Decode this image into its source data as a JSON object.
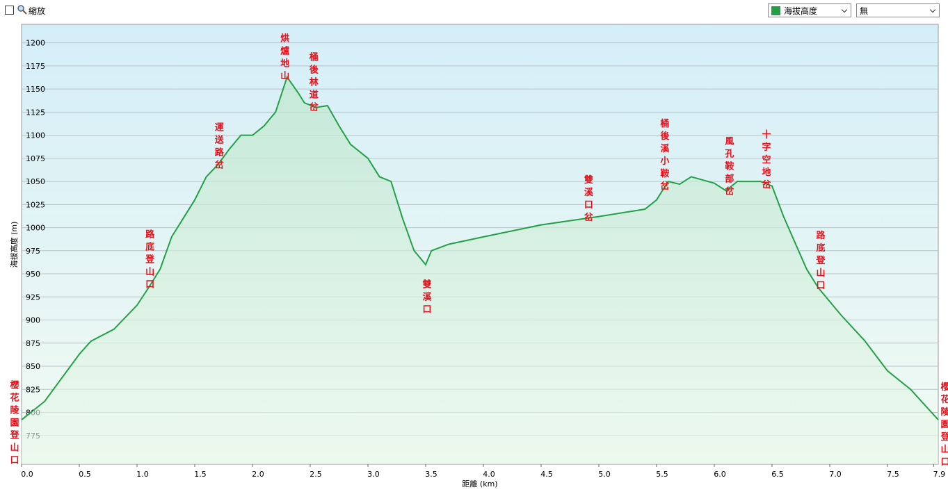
{
  "toolbar": {
    "zoom_label": "縮放",
    "overlay_select": "無"
  },
  "chart_data": {
    "type": "area",
    "x_label": "距離 (km)",
    "y_label": "海拔高度 (m)",
    "x": [
      0,
      0.2,
      0.5,
      0.6,
      0.8,
      1.0,
      1.1,
      1.2,
      1.3,
      1.4,
      1.5,
      1.6,
      1.7,
      1.8,
      1.9,
      2.0,
      2.1,
      2.2,
      2.3,
      2.4,
      2.45,
      2.55,
      2.65,
      2.75,
      2.85,
      2.95,
      3.0,
      3.1,
      3.2,
      3.3,
      3.4,
      3.5,
      3.55,
      3.7,
      4.0,
      4.5,
      5.0,
      5.4,
      5.5,
      5.6,
      5.7,
      5.8,
      6.0,
      6.1,
      6.2,
      6.4,
      6.5,
      6.6,
      6.8,
      6.9,
      7.1,
      7.3,
      7.5,
      7.7,
      7.94
    ],
    "series": [
      {
        "name": "海拔高度",
        "color": "#22a045",
        "values": [
          792,
          812,
          863,
          877,
          890,
          916,
          935,
          955,
          990,
          1010,
          1030,
          1055,
          1068,
          1085,
          1100,
          1100,
          1110,
          1125,
          1163,
          1145,
          1135,
          1130,
          1132,
          1110,
          1090,
          1080,
          1075,
          1055,
          1050,
          1010,
          975,
          960,
          975,
          982,
          990,
          1003,
          1012,
          1020,
          1030,
          1050,
          1047,
          1055,
          1048,
          1040,
          1050,
          1050,
          1045,
          1012,
          955,
          935,
          905,
          878,
          845,
          825,
          792
        ]
      }
    ],
    "annotations": [
      {
        "text": "櫻花陵園登山口",
        "x": 0,
        "y": 835
      },
      {
        "text": "路底登山口",
        "x": 1.1,
        "y": 998
      },
      {
        "text": "運送路岔",
        "x": 1.7,
        "y": 1114
      },
      {
        "text": "烘爐地山",
        "x": 2.27,
        "y": 1210
      },
      {
        "text": "桶後林道岔",
        "x": 2.52,
        "y": 1190
      },
      {
        "text": "雙溪口",
        "x": 3.5,
        "y": 944
      },
      {
        "text": "雙溪口岔",
        "x": 4.9,
        "y": 1057
      },
      {
        "text": "桶後溪小鞍岔",
        "x": 5.56,
        "y": 1118
      },
      {
        "text": "風孔鞍部岔",
        "x": 6.12,
        "y": 1099
      },
      {
        "text": "十字空地岔",
        "x": 6.44,
        "y": 1106
      },
      {
        "text": "路底登山口",
        "x": 6.91,
        "y": 997
      },
      {
        "text": "櫻花陵園登山口",
        "x": 7.94,
        "y": 833
      }
    ],
    "xlim": [
      0,
      7.94
    ],
    "ylim": [
      744,
      1220
    ],
    "xticks": [
      {
        "value": 0,
        "label": "0.0"
      },
      0.5,
      {
        "value": 1,
        "label": "1.0"
      },
      1.5,
      {
        "value": 2,
        "label": "2.0"
      },
      2.5,
      {
        "value": 3,
        "label": "3.0"
      },
      3.5,
      {
        "value": 4,
        "label": "4.0"
      },
      4.5,
      {
        "value": 5,
        "label": "5.0"
      },
      5.5,
      {
        "value": 6,
        "label": "6.0"
      },
      6.5,
      {
        "value": 7,
        "label": "7.0"
      },
      7.5,
      7.9
    ],
    "yticks": [
      775,
      800,
      825,
      850,
      875,
      900,
      925,
      950,
      975,
      1000,
      1025,
      1050,
      1075,
      1100,
      1125,
      1150,
      1175,
      1200
    ],
    "grid": true,
    "annotation_color": "#e8101a"
  }
}
